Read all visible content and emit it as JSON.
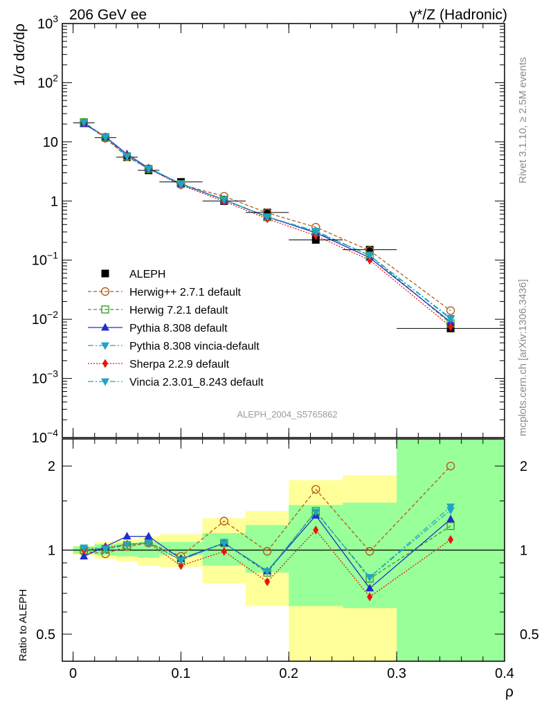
{
  "header": {
    "left_title": "206 GeV ee",
    "right_title": "γ*/Z (Hadronic)"
  },
  "side_text": {
    "rivet": "Rivet 3.1.10, ≥ 2.5M events",
    "mcplots": "mcplots.cern.ch [arXiv:1306.3436]"
  },
  "watermark": "ALEPH_2004_S5765862",
  "chart_data": [
    {
      "type": "line",
      "panel": "main",
      "ylabel": "1/σ dσ/dρ",
      "yscale": "log",
      "ylim": [
        0.0001,
        1000
      ],
      "xlim": [
        -0.01,
        0.4
      ],
      "y_tick_labels": [
        "10^-4",
        "10^-3",
        "10^-2",
        "10^-1",
        "1",
        "10",
        "10^2",
        "10^3"
      ],
      "legend_position": "bottom-left",
      "x": [
        0.01,
        0.03,
        0.05,
        0.07,
        0.1,
        0.14,
        0.18,
        0.225,
        0.275,
        0.35
      ],
      "series": [
        {
          "name": "ALEPH",
          "color": "#000000",
          "marker": "square-filled",
          "values": [
            21.0,
            11.8,
            5.5,
            3.3,
            2.1,
            1.0,
            0.64,
            0.22,
            0.15,
            0.007
          ],
          "xerr": [
            0.01,
            0.01,
            0.01,
            0.01,
            0.02,
            0.02,
            0.02,
            0.025,
            0.025,
            0.05
          ]
        },
        {
          "name": "Herwig++ 2.7.1 default",
          "color": "#b35a1f",
          "marker": "circle-open",
          "dash": "5,3",
          "values": [
            21.0,
            11.5,
            5.6,
            3.5,
            1.9,
            1.2,
            0.63,
            0.36,
            0.145,
            0.014
          ]
        },
        {
          "name": "Herwig 7.2.1 default",
          "color": "#3c9b2d",
          "marker": "square-open",
          "dash": "5,3",
          "values": [
            21.5,
            12.0,
            5.7,
            3.5,
            1.95,
            1.05,
            0.53,
            0.3,
            0.12,
            0.0085
          ]
        },
        {
          "name": "Pythia 8.308 default",
          "color": "#1f2ecc",
          "marker": "triangle-up",
          "dash": "",
          "values": [
            20.0,
            12.2,
            6.2,
            3.6,
            1.95,
            1.05,
            0.54,
            0.29,
            0.11,
            0.009
          ]
        },
        {
          "name": "Pythia 8.308 vincia-default",
          "color": "#1fa5c4",
          "marker": "triangle-down",
          "dash": "8,3,2,3",
          "values": [
            21.5,
            12.0,
            5.8,
            3.5,
            1.95,
            1.05,
            0.54,
            0.31,
            0.12,
            0.0105
          ]
        },
        {
          "name": "Sherpa 2.2.9 default",
          "color": "#e8140c",
          "marker": "diamond",
          "dash": "2,2",
          "values": [
            21.0,
            12.0,
            5.8,
            3.5,
            1.85,
            0.99,
            0.5,
            0.26,
            0.1,
            0.0075
          ]
        },
        {
          "name": "Vincia 2.3.01_8.243 default",
          "color": "#1fa5c4",
          "marker": "triangle-down",
          "dash": "8,3,2,3",
          "values": [
            21.5,
            12.0,
            5.7,
            3.5,
            1.9,
            1.05,
            0.54,
            0.3,
            0.12,
            0.0101
          ]
        }
      ]
    },
    {
      "type": "line",
      "panel": "ratio",
      "ylabel": "Ratio to ALEPH",
      "xlabel": "ρ",
      "yscale": "log",
      "ylim": [
        0.4,
        2.5
      ],
      "xlim": [
        -0.01,
        0.4
      ],
      "x_tick_labels": [
        "0",
        "0.1",
        "0.2",
        "0.3",
        "0.4"
      ],
      "y_tick_labels": [
        "0.5",
        "1",
        "2"
      ],
      "reference_line": 1,
      "bands": {
        "xlo": [
          0.0,
          0.02,
          0.04,
          0.06,
          0.08,
          0.12,
          0.16,
          0.2,
          0.25,
          0.3
        ],
        "xhi": [
          0.02,
          0.04,
          0.06,
          0.08,
          0.12,
          0.16,
          0.2,
          0.25,
          0.3,
          0.4
        ],
        "stat_lo": [
          0.97,
          0.96,
          0.95,
          0.94,
          0.96,
          0.88,
          0.83,
          0.63,
          0.62,
          0.4
        ],
        "stat_hi": [
          1.03,
          1.05,
          1.06,
          1.07,
          1.07,
          1.15,
          1.23,
          1.45,
          1.48,
          2.5
        ],
        "total_lo": [
          0.96,
          0.93,
          0.91,
          0.88,
          0.87,
          0.76,
          0.63,
          0.4,
          0.4,
          0.4
        ],
        "total_hi": [
          1.04,
          1.07,
          1.09,
          1.12,
          1.14,
          1.3,
          1.38,
          1.78,
          1.85,
          2.5
        ],
        "stat_color": "#99ff99",
        "total_color": "#ffff99"
      },
      "x": [
        0.01,
        0.03,
        0.05,
        0.07,
        0.1,
        0.14,
        0.18,
        0.225,
        0.275,
        0.35
      ],
      "series": [
        {
          "name": "Herwig++ 2.7.1 default",
          "values": [
            0.99,
            0.97,
            1.03,
            1.06,
            0.95,
            1.27,
            0.99,
            1.65,
            0.99,
            2.0
          ]
        },
        {
          "name": "Herwig 7.2.1 default",
          "values": [
            1.0,
            1.01,
            1.04,
            1.07,
            0.92,
            1.06,
            0.83,
            1.38,
            0.79,
            1.22
          ]
        },
        {
          "name": "Pythia 8.308 default",
          "values": [
            0.95,
            1.03,
            1.12,
            1.12,
            0.93,
            1.06,
            0.84,
            1.33,
            0.73,
            1.29
          ]
        },
        {
          "name": "Pythia 8.308 vincia-default",
          "values": [
            1.02,
            1.01,
            1.05,
            1.06,
            0.92,
            1.06,
            0.84,
            1.37,
            0.8,
            1.43
          ]
        },
        {
          "name": "Sherpa 2.2.9 default",
          "values": [
            1.0,
            1.02,
            1.05,
            1.06,
            0.88,
            0.99,
            0.77,
            1.18,
            0.68,
            1.09
          ]
        },
        {
          "name": "Vincia 2.3.01_8.243 default",
          "values": [
            1.02,
            1.01,
            1.05,
            1.06,
            0.92,
            1.06,
            0.84,
            1.37,
            0.8,
            1.39
          ]
        }
      ]
    }
  ]
}
